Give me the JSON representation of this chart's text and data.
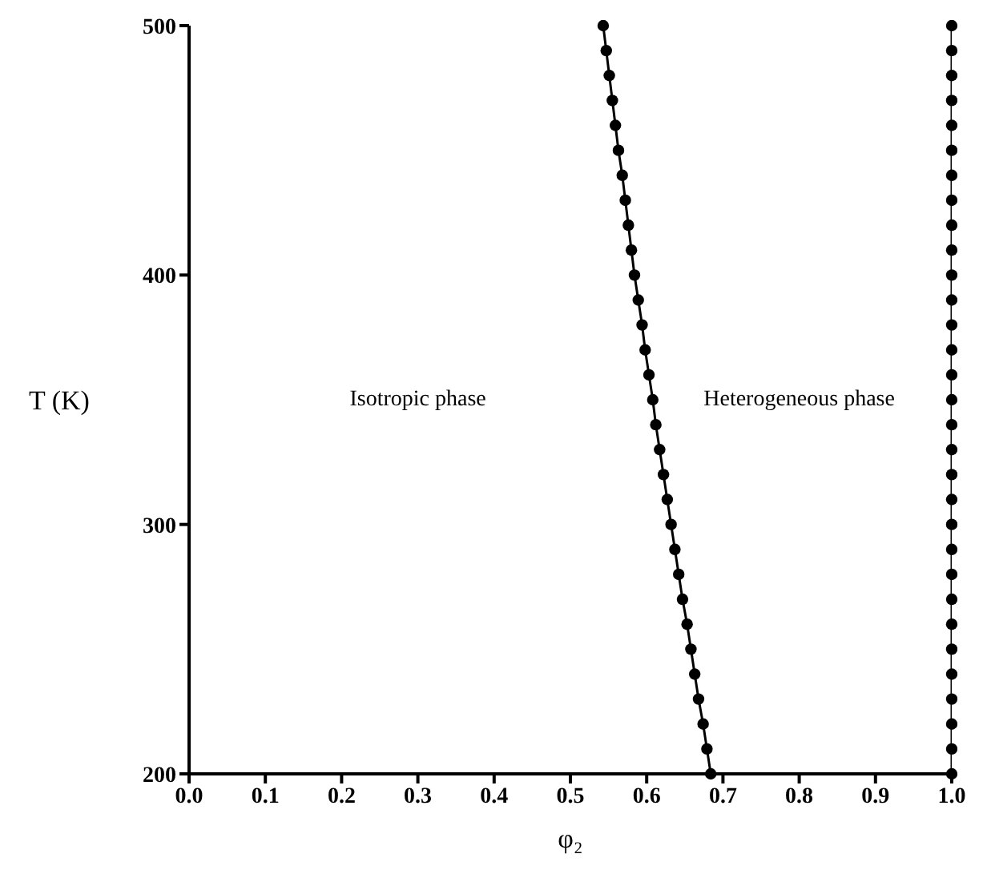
{
  "chart_data": {
    "type": "line",
    "xlabel": "φ₂",
    "ylabel": "T (K)",
    "xlim": [
      0,
      1
    ],
    "xticks": [
      {
        "value": 0,
        "label": "0.0"
      },
      0.1,
      0.2,
      0.3,
      0.4,
      0.5,
      0.6,
      0.7,
      0.8,
      0.9,
      {
        "value": 1,
        "label": "1.0"
      }
    ],
    "ylim": [
      200,
      500
    ],
    "yticks": [
      200,
      300,
      400,
      500
    ],
    "marker": "circle",
    "line_style": "solid",
    "series": [
      {
        "color": "#000000",
        "x": [
          0.684,
          0.679,
          0.674,
          0.668,
          0.663,
          0.658,
          0.653,
          0.647,
          0.642,
          0.637,
          0.632,
          0.627,
          0.622,
          0.617,
          0.612,
          0.608,
          0.603,
          0.598,
          0.594,
          0.589,
          0.584,
          0.58,
          0.576,
          0.572,
          0.568,
          0.563,
          0.559,
          0.555,
          0.551,
          0.547,
          0.543
        ],
        "values": [
          200,
          210,
          220,
          230,
          240,
          250,
          260,
          270,
          280,
          290,
          300,
          310,
          320,
          330,
          340,
          350,
          360,
          370,
          380,
          390,
          400,
          410,
          420,
          430,
          440,
          450,
          460,
          470,
          480,
          490,
          500
        ]
      },
      {
        "color": "#000000",
        "x": [
          1,
          1,
          1,
          1,
          1,
          1,
          1,
          1,
          1,
          1,
          1,
          1,
          1,
          1,
          1,
          1,
          1,
          1,
          1,
          1,
          1,
          1,
          1,
          1,
          1,
          1,
          1,
          1,
          1,
          1,
          1
        ],
        "values": [
          200,
          210,
          220,
          230,
          240,
          250,
          260,
          270,
          280,
          290,
          300,
          310,
          320,
          330,
          340,
          350,
          360,
          370,
          380,
          390,
          400,
          410,
          420,
          430,
          440,
          450,
          460,
          470,
          480,
          490,
          500
        ]
      }
    ],
    "annotations": [
      "Isotropic phase",
      "Heterogeneous phase"
    ]
  }
}
